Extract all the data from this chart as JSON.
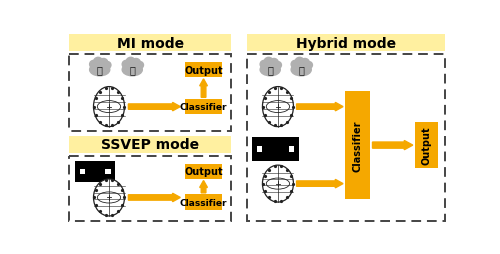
{
  "bg_color": "#ffffff",
  "yellow_fill": "#FFF0A0",
  "orange": "#F5A800",
  "dark": "#222222",
  "gray_cloud": "#b0b0b0",
  "title_mi": "MI mode",
  "title_ssvep": "SSVEP mode",
  "title_hybrid": "Hybrid mode"
}
